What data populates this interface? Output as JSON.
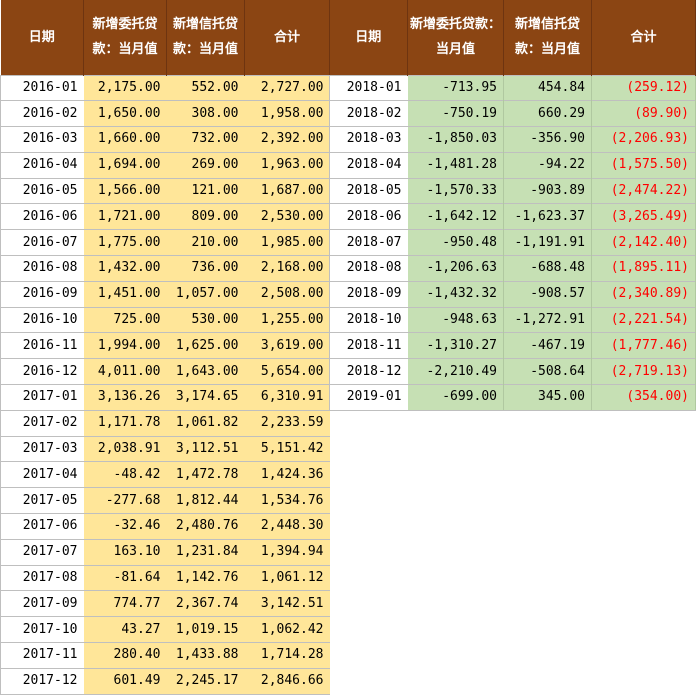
{
  "left_table": {
    "headers": [
      "日期",
      "新增委托贷款：当月值",
      "新增信托贷款：当月值",
      "合计"
    ],
    "rows": [
      [
        "2016-01",
        "2,175.00",
        "552.00",
        "2,727.00"
      ],
      [
        "2016-02",
        "1,650.00",
        "308.00",
        "1,958.00"
      ],
      [
        "2016-03",
        "1,660.00",
        "732.00",
        "2,392.00"
      ],
      [
        "2016-04",
        "1,694.00",
        "269.00",
        "1,963.00"
      ],
      [
        "2016-05",
        "1,566.00",
        "121.00",
        "1,687.00"
      ],
      [
        "2016-06",
        "1,721.00",
        "809.00",
        "2,530.00"
      ],
      [
        "2016-07",
        "1,775.00",
        "210.00",
        "1,985.00"
      ],
      [
        "2016-08",
        "1,432.00",
        "736.00",
        "2,168.00"
      ],
      [
        "2016-09",
        "1,451.00",
        "1,057.00",
        "2,508.00"
      ],
      [
        "2016-10",
        "725.00",
        "530.00",
        "1,255.00"
      ],
      [
        "2016-11",
        "1,994.00",
        "1,625.00",
        "3,619.00"
      ],
      [
        "2016-12",
        "4,011.00",
        "1,643.00",
        "5,654.00"
      ],
      [
        "2017-01",
        "3,136.26",
        "3,174.65",
        "6,310.91"
      ],
      [
        "2017-02",
        "1,171.78",
        "1,061.82",
        "2,233.59"
      ],
      [
        "2017-03",
        "2,038.91",
        "3,112.51",
        "5,151.42"
      ],
      [
        "2017-04",
        "-48.42",
        "1,472.78",
        "1,424.36"
      ],
      [
        "2017-05",
        "-277.68",
        "1,812.44",
        "1,534.76"
      ],
      [
        "2017-06",
        "-32.46",
        "2,480.76",
        "2,448.30"
      ],
      [
        "2017-07",
        "163.10",
        "1,231.84",
        "1,394.94"
      ],
      [
        "2017-08",
        "-81.64",
        "1,142.76",
        "1,061.12"
      ],
      [
        "2017-09",
        "774.77",
        "2,367.74",
        "3,142.51"
      ],
      [
        "2017-10",
        "43.27",
        "1,019.15",
        "1,062.42"
      ],
      [
        "2017-11",
        "280.40",
        "1,433.88",
        "1,714.28"
      ],
      [
        "2017-12",
        "601.49",
        "2,245.17",
        "2,846.66"
      ]
    ]
  },
  "right_table": {
    "headers": [
      "日期",
      "新增委托贷款：当月值",
      "新增信托贷款：当月值",
      "合计"
    ],
    "rows": [
      [
        "2018-01",
        "-713.95",
        "454.84",
        "(259.12)"
      ],
      [
        "2018-02",
        "-750.19",
        "660.29",
        "(89.90)"
      ],
      [
        "2018-03",
        "-1,850.03",
        "-356.90",
        "(2,206.93)"
      ],
      [
        "2018-04",
        "-1,481.28",
        "-94.22",
        "(1,575.50)"
      ],
      [
        "2018-05",
        "-1,570.33",
        "-903.89",
        "(2,474.22)"
      ],
      [
        "2018-06",
        "-1,642.12",
        "-1,623.37",
        "(3,265.49)"
      ],
      [
        "2018-07",
        "-950.48",
        "-1,191.91",
        "(2,142.40)"
      ],
      [
        "2018-08",
        "-1,206.63",
        "-688.48",
        "(1,895.11)"
      ],
      [
        "2018-09",
        "-1,432.32",
        "-908.57",
        "(2,340.89)"
      ],
      [
        "2018-10",
        "-948.63",
        "-1,272.91",
        "(2,221.54)"
      ],
      [
        "2018-11",
        "-1,310.27",
        "-467.19",
        "(1,777.46)"
      ],
      [
        "2018-12",
        "-2,210.49",
        "-508.64",
        "(2,719.13)"
      ],
      [
        "2019-01",
        "-699.00",
        "345.00",
        "(354.00)"
      ]
    ]
  },
  "colors": {
    "header_bg": "#8b4513",
    "header_text": "#ffffff",
    "left_value_bg": "#ffe699",
    "right_value_bg": "#c6e0b4",
    "negative_total_text": "#ff0000"
  }
}
